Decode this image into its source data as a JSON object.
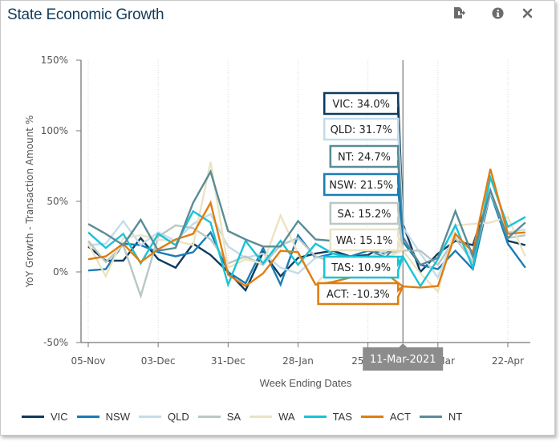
{
  "header": {
    "title": "State Economic Growth",
    "icons": [
      "export-icon",
      "info-icon",
      "close-icon"
    ]
  },
  "hover": {
    "date_label": "11-Mar-2021",
    "index": 18,
    "tooltips": [
      {
        "key": "VIC",
        "text": "VIC: 34.0%"
      },
      {
        "key": "QLD",
        "text": "QLD: 31.7%"
      },
      {
        "key": "NT",
        "text": "NT: 24.7%"
      },
      {
        "key": "NSW",
        "text": "NSW: 21.5%"
      },
      {
        "key": "SA",
        "text": "SA: 15.2%"
      },
      {
        "key": "WA",
        "text": "WA: 15.1%"
      },
      {
        "key": "TAS",
        "text": "TAS: 10.9%"
      },
      {
        "key": "ACT",
        "text": "ACT: -10.3%"
      }
    ]
  },
  "chart_data": {
    "type": "line",
    "title": "State Economic Growth",
    "xlabel": "Week Ending Dates",
    "ylabel": "YoY Growth - Transaction Amount %",
    "ylim": [
      -50,
      150
    ],
    "yticks": [
      -50,
      0,
      50,
      100,
      150
    ],
    "ytick_labels": [
      "-50%",
      "0%",
      "50%",
      "100%",
      "150%"
    ],
    "x": [
      "05-Nov",
      "12-Nov",
      "19-Nov",
      "26-Nov",
      "03-Dec",
      "10-Dec",
      "17-Dec",
      "24-Dec",
      "31-Dec",
      "07-Jan",
      "14-Jan",
      "21-Jan",
      "28-Jan",
      "04-Feb",
      "11-Feb",
      "18-Feb",
      "25-Feb",
      "04-Mar",
      "11-Mar",
      "18-Mar",
      "25-Mar",
      "01-Apr",
      "08-Apr",
      "15-Apr",
      "22-Apr",
      "29-Apr"
    ],
    "xtick_labels": [
      "05-Nov",
      "03-Dec",
      "31-Dec",
      "28-Jan",
      "25-Feb",
      "25-Mar",
      "22-Apr"
    ],
    "xtick_indices": [
      0,
      4,
      8,
      12,
      16,
      20,
      24
    ],
    "grid": "vertical-dotted",
    "legend_position": "bottom",
    "series": [
      {
        "name": "VIC",
        "color": "#0d3b5e",
        "values": [
          18,
          8,
          8,
          24,
          9,
          3,
          20,
          12,
          0,
          -13,
          14,
          -3,
          10,
          13,
          15,
          11,
          12,
          19,
          34.0,
          0,
          13,
          22,
          19,
          56,
          22,
          19
        ]
      },
      {
        "name": "NSW",
        "color": "#1a7db5",
        "values": [
          1,
          2,
          20,
          19,
          14,
          11,
          14,
          28,
          0,
          -8,
          17,
          -9,
          26,
          10,
          13,
          11,
          15,
          13,
          21.5,
          5,
          2,
          15,
          2,
          56,
          20,
          3
        ]
      },
      {
        "name": "QLD",
        "color": "#c4dcea",
        "values": [
          19,
          20,
          36,
          19,
          28,
          22,
          34,
          41,
          18,
          10,
          13,
          3,
          -1,
          10,
          11,
          9,
          10,
          15,
          31.7,
          13,
          -4,
          27,
          10,
          56,
          28,
          30
        ]
      },
      {
        "name": "SA",
        "color": "#b9c8c4",
        "values": [
          22,
          7,
          19,
          -17,
          25,
          33,
          31,
          23,
          6,
          11,
          5,
          19,
          24,
          11,
          7,
          10,
          5,
          13,
          15.2,
          15,
          5,
          24,
          7,
          57,
          24,
          26
        ]
      },
      {
        "name": "WA",
        "color": "#ebe3c3",
        "values": [
          20,
          -3,
          24,
          26,
          23,
          22,
          19,
          78,
          3,
          9,
          6,
          40,
          13,
          -9,
          5,
          9,
          6,
          10,
          15.1,
          -1,
          -14,
          33,
          34,
          35,
          39,
          11
        ]
      },
      {
        "name": "TAS",
        "color": "#19c3d6",
        "values": [
          28,
          17,
          27,
          6,
          27,
          19,
          43,
          35,
          -9,
          22,
          6,
          22,
          5,
          20,
          13,
          10,
          11,
          10,
          10.9,
          -10,
          9,
          33,
          3,
          67,
          32,
          39
        ]
      },
      {
        "name": "ACT",
        "color": "#e07d10",
        "values": [
          9,
          11,
          20,
          7,
          16,
          23,
          27,
          49,
          -2,
          -10,
          -1,
          15,
          14,
          -9,
          -7,
          -4,
          5,
          -1,
          -10.3,
          -11,
          -10,
          27,
          14,
          73,
          27,
          28
        ]
      },
      {
        "name": "NT",
        "color": "#5a8c96",
        "values": [
          34,
          27,
          19,
          37,
          15,
          17,
          49,
          71,
          29,
          23,
          18,
          18,
          36,
          23,
          22,
          19,
          16,
          10,
          24.7,
          5,
          10,
          43,
          11,
          58,
          24,
          35
        ]
      }
    ]
  }
}
